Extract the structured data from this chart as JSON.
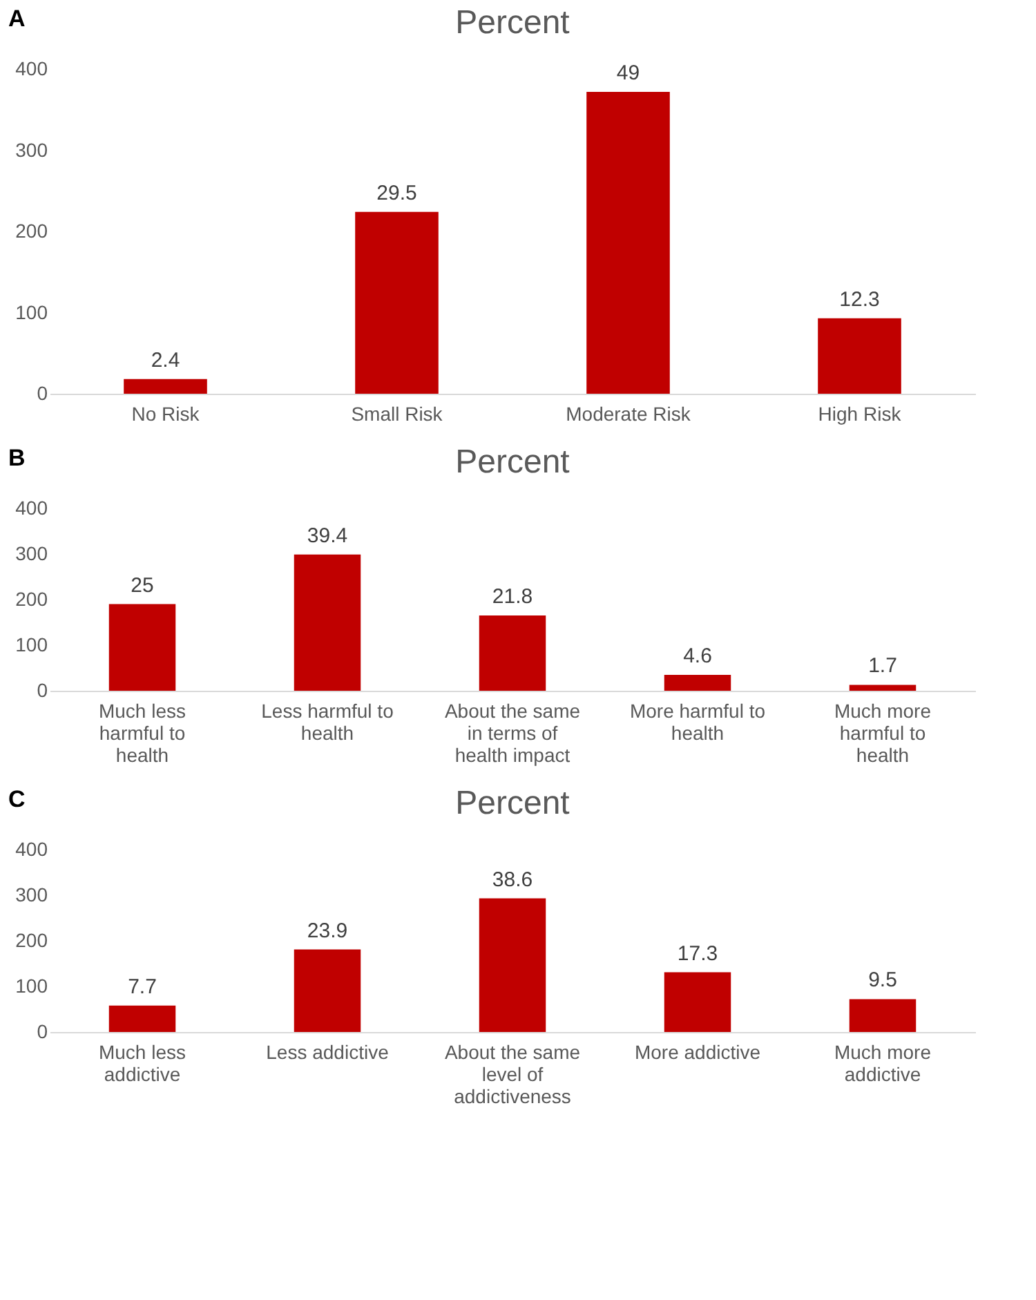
{
  "chart_data": [
    {
      "type": "bar",
      "title": "Percent",
      "annotations": [
        "A",
        {
          "text": "2.4",
          "x": "No Risk",
          "y": 18
        },
        {
          "text": "29.5",
          "x": "Small Risk",
          "y": 224
        },
        {
          "text": "49",
          "x": "Moderate Risk",
          "y": 372
        },
        {
          "text": "12.3",
          "x": "High Risk",
          "y": 93
        }
      ],
      "categories": [
        "No Risk",
        "Small Risk",
        "Moderate Risk",
        "High Risk"
      ],
      "values": [
        18,
        224,
        372,
        93
      ],
      "color": "#c00000",
      "ylim": [
        0,
        400
      ],
      "yticks": [
        0,
        100,
        200,
        300,
        400
      ],
      "grid": false
    },
    {
      "type": "bar",
      "title": "Percent",
      "annotations": [
        "B",
        {
          "text": "25",
          "x": "Much less harmful to health",
          "y": 190
        },
        {
          "text": "39.4",
          "x": "Less harmful to health",
          "y": 299
        },
        {
          "text": "21.8",
          "x": "About the same in terms of health impact",
          "y": 165
        },
        {
          "text": "4.6",
          "x": "More harmful to health",
          "y": 35
        },
        {
          "text": "1.7",
          "x": "Much more harmful to health",
          "y": 13
        }
      ],
      "categories": [
        "Much less harmful to health",
        "Less harmful to health",
        "About the same in terms of health impact",
        "More harmful to health",
        "Much more harmful to health"
      ],
      "values": [
        190,
        299,
        165,
        35,
        13
      ],
      "color": "#c00000",
      "ylim": [
        0,
        400
      ],
      "yticks": [
        0,
        100,
        200,
        300,
        400
      ],
      "grid": false
    },
    {
      "type": "bar",
      "title": "Percent",
      "annotations": [
        "C",
        {
          "text": "7.7",
          "x": "Much less addictive",
          "y": 58
        },
        {
          "text": "23.9",
          "x": "Less addictive",
          "y": 181
        },
        {
          "text": "38.6",
          "x": "About the same level of addictiveness",
          "y": 293
        },
        {
          "text": "17.3",
          "x": "More addictive",
          "y": 131
        },
        {
          "text": "9.5",
          "x": "Much more addictive",
          "y": 72
        }
      ],
      "categories": [
        "Much less addictive",
        "Less addictive",
        "About the same level of addictiveness",
        "More addictive",
        "Much more addictive"
      ],
      "values": [
        58,
        181,
        293,
        131,
        72
      ],
      "color": "#c00000",
      "ylim": [
        0,
        400
      ],
      "yticks": [
        0,
        100,
        200,
        300,
        400
      ],
      "grid": false
    }
  ]
}
